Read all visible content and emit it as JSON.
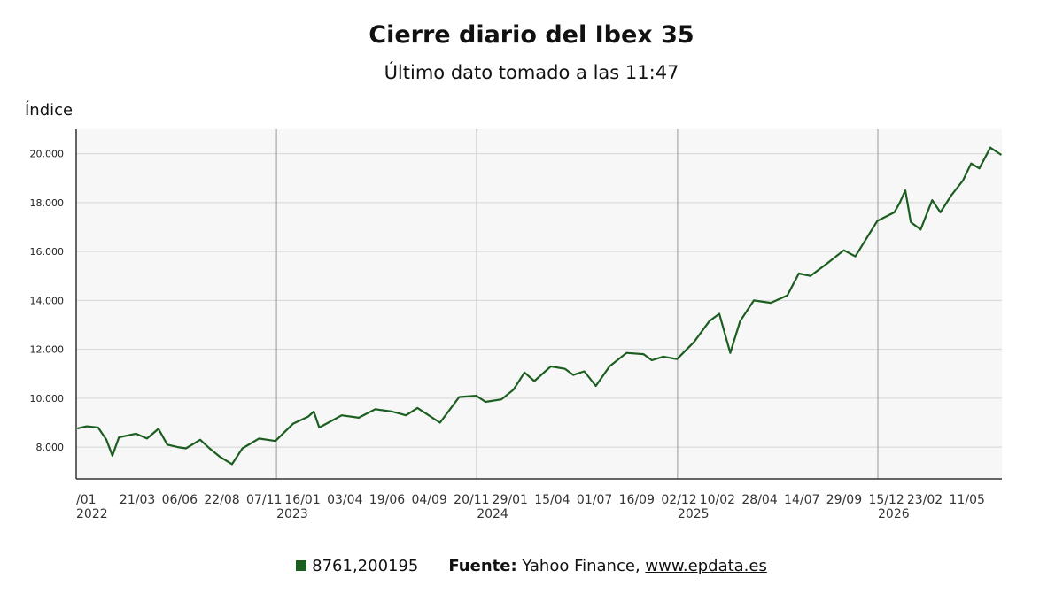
{
  "title": "Cierre diario del Ibex 35",
  "subtitle": "Último dato tomado a las 11:47",
  "footer": {
    "legend_label": "8761,200195",
    "source_label": "Fuente:",
    "source_text": "Yahoo Finance,",
    "source_link": "www.epdata.es"
  },
  "colors": {
    "line": "#1b5e20",
    "plot_bg": "#f7f7f7",
    "grid": "#d6d6d6",
    "year_line": "#999999"
  },
  "chart_data": {
    "type": "line",
    "ylabel": "Índice",
    "ylim": [
      6700,
      21000
    ],
    "yticks": [
      8000,
      10000,
      12000,
      14000,
      16000,
      18000,
      20000
    ],
    "ytick_labels": [
      "8.000",
      "10.000",
      "12.000",
      "14.000",
      "16.000",
      "18.000",
      "20.000"
    ],
    "xlim": [
      "2022-01-01",
      "2026-08-15"
    ],
    "year_lines": [
      "2023-01-01",
      "2024-01-01",
      "2025-01-01",
      "2026-01-01"
    ],
    "xtick_labels": [
      {
        "date": "2022-01-01",
        "text": "/01"
      },
      {
        "date": "2022-03-21",
        "text": "21/03"
      },
      {
        "date": "2022-06-06",
        "text": "06/06"
      },
      {
        "date": "2022-08-22",
        "text": "22/08"
      },
      {
        "date": "2022-11-07",
        "text": "07/11"
      },
      {
        "date": "2023-01-16",
        "text": "16/01"
      },
      {
        "date": "2023-04-03",
        "text": "03/04"
      },
      {
        "date": "2023-06-19",
        "text": "19/06"
      },
      {
        "date": "2023-09-04",
        "text": "04/09"
      },
      {
        "date": "2023-11-20",
        "text": "20/11"
      },
      {
        "date": "2024-01-29",
        "text": "29/01"
      },
      {
        "date": "2024-04-15",
        "text": "15/04"
      },
      {
        "date": "2024-07-01",
        "text": "01/07"
      },
      {
        "date": "2024-09-16",
        "text": "16/09"
      },
      {
        "date": "2024-12-02",
        "text": "02/12"
      },
      {
        "date": "2025-02-10",
        "text": "10/02"
      },
      {
        "date": "2025-04-28",
        "text": "28/04"
      },
      {
        "date": "2025-07-14",
        "text": "14/07"
      },
      {
        "date": "2025-09-29",
        "text": "29/09"
      },
      {
        "date": "2025-12-15",
        "text": "15/12"
      },
      {
        "date": "2026-02-23",
        "text": "23/02"
      },
      {
        "date": "2026-05-11",
        "text": "11/05"
      }
    ],
    "year_labels": [
      {
        "date": "2022-01-01",
        "text": "2022"
      },
      {
        "date": "2023-01-01",
        "text": "2023"
      },
      {
        "date": "2024-01-01",
        "text": "2024"
      },
      {
        "date": "2025-01-01",
        "text": "2025"
      },
      {
        "date": "2026-01-01",
        "text": "2026"
      }
    ],
    "series": [
      {
        "values": [
          [
            "2022-01-03",
            8761
          ],
          [
            "2022-01-20",
            8850
          ],
          [
            "2022-02-10",
            8800
          ],
          [
            "2022-02-25",
            8300
          ],
          [
            "2022-03-08",
            7650
          ],
          [
            "2022-03-20",
            8400
          ],
          [
            "2022-04-20",
            8550
          ],
          [
            "2022-05-10",
            8350
          ],
          [
            "2022-05-31",
            8750
          ],
          [
            "2022-06-16",
            8100
          ],
          [
            "2022-07-05",
            8000
          ],
          [
            "2022-07-20",
            7950
          ],
          [
            "2022-08-15",
            8300
          ],
          [
            "2022-09-01",
            7950
          ],
          [
            "2022-09-20",
            7600
          ],
          [
            "2022-10-12",
            7300
          ],
          [
            "2022-10-31",
            7950
          ],
          [
            "2022-11-30",
            8350
          ],
          [
            "2022-12-30",
            8250
          ],
          [
            "2023-01-31",
            8950
          ],
          [
            "2023-02-28",
            9250
          ],
          [
            "2023-03-10",
            9450
          ],
          [
            "2023-03-20",
            8800
          ],
          [
            "2023-04-30",
            9300
          ],
          [
            "2023-05-31",
            9200
          ],
          [
            "2023-06-30",
            9550
          ],
          [
            "2023-07-31",
            9450
          ],
          [
            "2023-08-25",
            9300
          ],
          [
            "2023-09-15",
            9600
          ],
          [
            "2023-10-26",
            9000
          ],
          [
            "2023-11-30",
            10050
          ],
          [
            "2023-12-31",
            10100
          ],
          [
            "2024-01-17",
            9850
          ],
          [
            "2024-02-15",
            9950
          ],
          [
            "2024-03-08",
            10350
          ],
          [
            "2024-03-28",
            11050
          ],
          [
            "2024-04-15",
            10700
          ],
          [
            "2024-05-15",
            11300
          ],
          [
            "2024-06-10",
            11200
          ],
          [
            "2024-06-25",
            10950
          ],
          [
            "2024-07-15",
            11100
          ],
          [
            "2024-08-05",
            10500
          ],
          [
            "2024-08-30",
            11300
          ],
          [
            "2024-09-30",
            11850
          ],
          [
            "2024-10-31",
            11800
          ],
          [
            "2024-11-15",
            11550
          ],
          [
            "2024-12-06",
            11700
          ],
          [
            "2024-12-31",
            11600
          ],
          [
            "2025-01-31",
            12300
          ],
          [
            "2025-02-28",
            13150
          ],
          [
            "2025-03-18",
            13450
          ],
          [
            "2025-04-07",
            11850
          ],
          [
            "2025-04-25",
            13150
          ],
          [
            "2025-05-20",
            14000
          ],
          [
            "2025-06-20",
            13900
          ],
          [
            "2025-07-20",
            14200
          ],
          [
            "2025-08-10",
            15100
          ],
          [
            "2025-08-31",
            15000
          ],
          [
            "2025-09-30",
            15500
          ],
          [
            "2025-10-31",
            16050
          ],
          [
            "2025-11-21",
            15800
          ],
          [
            "2025-12-31",
            17250
          ],
          [
            "2026-01-31",
            17600
          ],
          [
            "2026-02-10",
            18000
          ],
          [
            "2026-02-20",
            18500
          ],
          [
            "2026-03-02",
            17200
          ],
          [
            "2026-03-20",
            16900
          ],
          [
            "2026-04-10",
            18100
          ],
          [
            "2026-04-25",
            17600
          ],
          [
            "2026-05-15",
            18300
          ],
          [
            "2026-06-05",
            18900
          ],
          [
            "2026-06-20",
            19600
          ],
          [
            "2026-07-05",
            19400
          ],
          [
            "2026-07-25",
            20250
          ],
          [
            "2026-08-04",
            20100
          ],
          [
            "2026-08-14",
            19950
          ]
        ]
      }
    ]
  }
}
